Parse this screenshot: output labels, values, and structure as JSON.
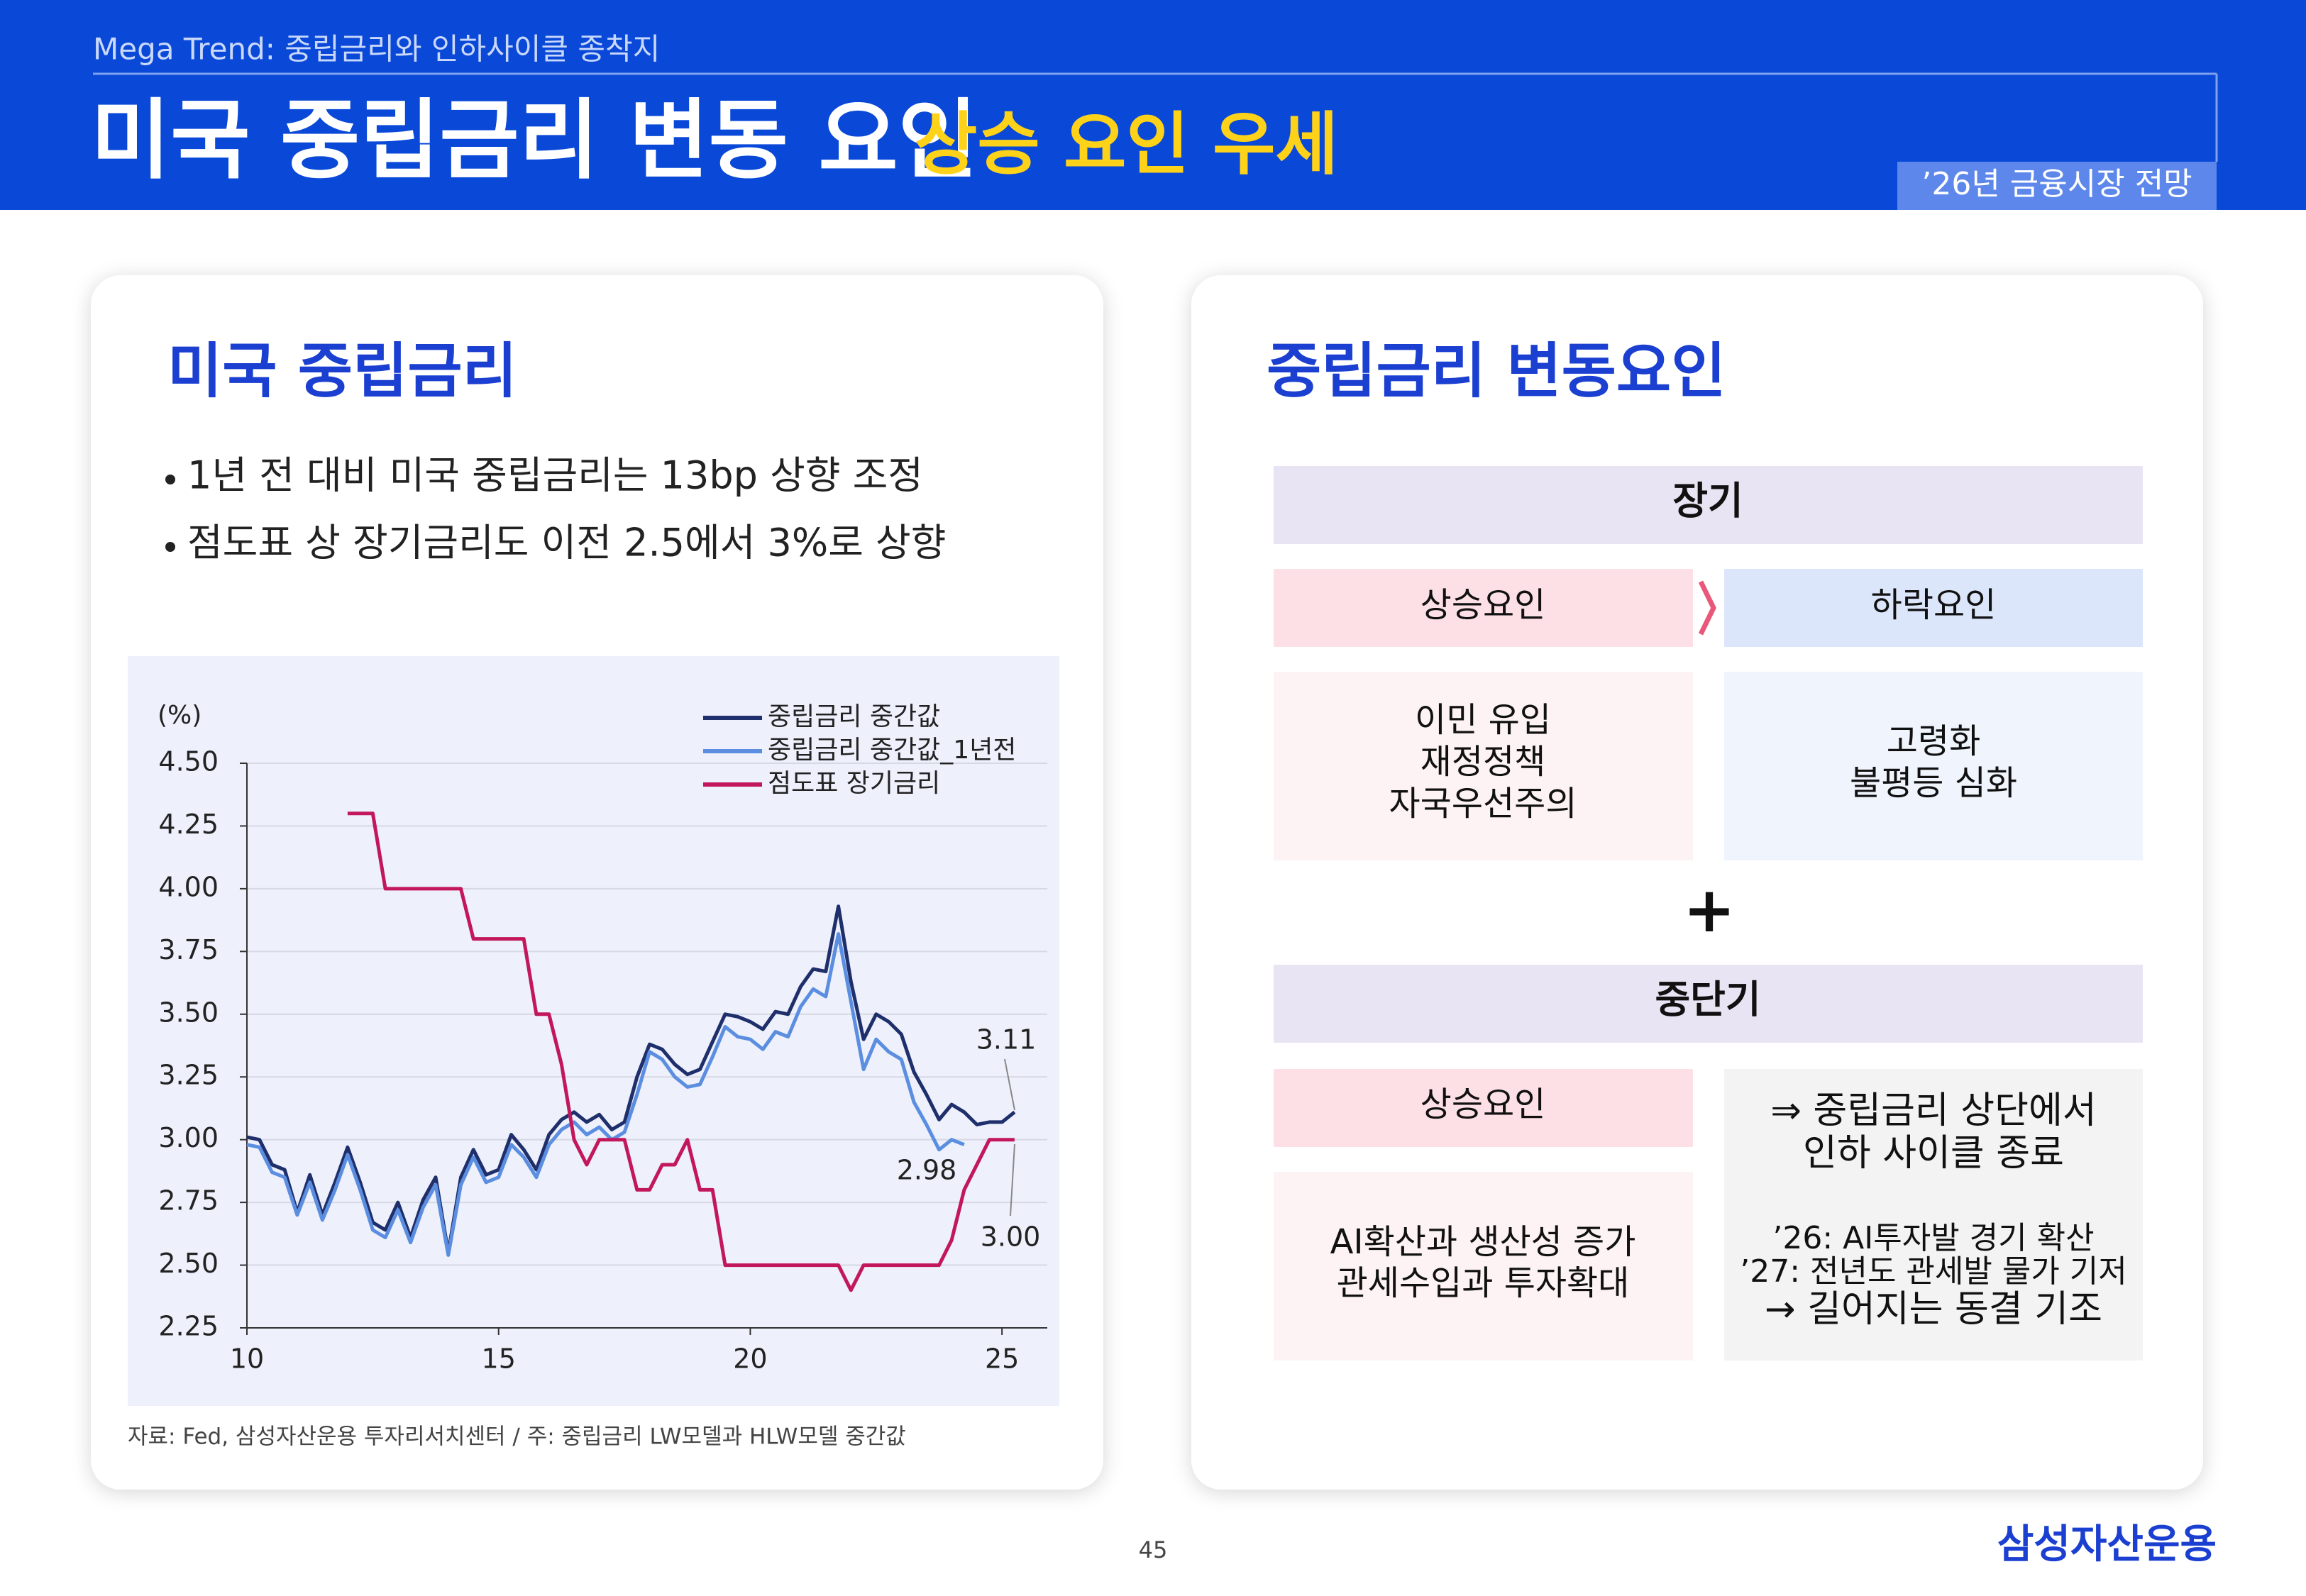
{
  "header": {
    "subtitle": "Mega Trend: 중립금리와 인하사이클 종착지",
    "title": "미국 중립금리 변동 요인",
    "highlight": "상승 요인 우세",
    "tag": "’26년 금융시장 전망"
  },
  "left_panel": {
    "heading": "미국 중립금리",
    "bullets": [
      "1년 전 대비 미국 중립금리는 13bp 상향 조정",
      "점도표 상 장기금리도 이전 2.5에서 3%로 상향"
    ],
    "source": "자료: Fed, 삼성자산운용 투자리서치센터 / 주: 중립금리  LW모델과 HLW모델 중간값"
  },
  "chart_data": {
    "type": "line",
    "y_label": "(%)",
    "grid": true,
    "legend": "upper right",
    "x": [
      10,
      10.25,
      10.5,
      10.75,
      11,
      11.25,
      11.5,
      11.75,
      12,
      12.25,
      12.5,
      12.75,
      13,
      13.25,
      13.5,
      13.75,
      14,
      14.25,
      14.5,
      14.75,
      15,
      15.25,
      15.5,
      15.75,
      16,
      16.25,
      16.5,
      16.75,
      17,
      17.25,
      17.5,
      17.75,
      18,
      18.25,
      18.5,
      18.75,
      19,
      19.25,
      19.5,
      19.75,
      20,
      20.25,
      20.5,
      20.75,
      21,
      21.25,
      21.5,
      21.75,
      22,
      22.25,
      22.5,
      22.75,
      23,
      23.25,
      23.5,
      23.75,
      24,
      24.25,
      24.5,
      24.75,
      25,
      25.25
    ],
    "series": [
      {
        "name": "중립금리 중간값",
        "color": "#1f2f6b",
        "values": [
          3.01,
          3.0,
          2.9,
          2.88,
          2.71,
          2.86,
          2.7,
          2.83,
          2.97,
          2.83,
          2.67,
          2.64,
          2.75,
          2.61,
          2.76,
          2.85,
          2.55,
          2.85,
          2.96,
          2.86,
          2.88,
          3.02,
          2.96,
          2.88,
          3.02,
          3.08,
          3.11,
          3.07,
          3.1,
          3.04,
          3.07,
          3.25,
          3.38,
          3.36,
          3.3,
          3.26,
          3.28,
          3.39,
          3.5,
          3.49,
          3.47,
          3.44,
          3.51,
          3.5,
          3.61,
          3.68,
          3.67,
          3.93,
          3.63,
          3.4,
          3.5,
          3.47,
          3.42,
          3.27,
          3.18,
          3.08,
          3.14,
          3.11,
          3.06,
          3.07,
          3.07,
          3.11
        ]
      },
      {
        "name": "중립금리 중간값_1년전",
        "color": "#5b8ee0",
        "values": [
          2.98,
          2.97,
          2.87,
          2.85,
          2.7,
          2.83,
          2.68,
          2.8,
          2.94,
          2.8,
          2.64,
          2.61,
          2.72,
          2.59,
          2.73,
          2.82,
          2.54,
          2.82,
          2.93,
          2.83,
          2.85,
          2.98,
          2.93,
          2.85,
          2.98,
          3.04,
          3.07,
          3.02,
          3.05,
          3.0,
          3.03,
          3.18,
          3.35,
          3.32,
          3.25,
          3.21,
          3.22,
          3.33,
          3.45,
          3.41,
          3.4,
          3.36,
          3.43,
          3.41,
          3.53,
          3.6,
          3.57,
          3.82,
          3.55,
          3.28,
          3.4,
          3.35,
          3.32,
          3.15,
          3.06,
          2.96,
          3.0,
          2.98,
          null,
          null,
          null,
          null
        ]
      },
      {
        "name": "점도표 장기금리",
        "color": "#c2185b",
        "values": [
          null,
          null,
          null,
          null,
          null,
          null,
          null,
          null,
          4.3,
          4.3,
          4.3,
          4.0,
          4.0,
          4.0,
          4.0,
          4.0,
          4.0,
          4.0,
          3.8,
          3.8,
          3.8,
          3.8,
          3.8,
          3.5,
          3.5,
          3.3,
          3.0,
          2.9,
          3.0,
          3.0,
          3.0,
          2.8,
          2.8,
          2.9,
          2.9,
          3.0,
          2.8,
          2.8,
          2.5,
          2.5,
          2.5,
          2.5,
          2.5,
          2.5,
          2.5,
          2.5,
          2.5,
          2.5,
          2.4,
          2.5,
          2.5,
          2.5,
          2.5,
          2.5,
          2.5,
          2.5,
          2.6,
          2.8,
          2.9,
          3.0,
          3.0,
          3.0
        ]
      }
    ],
    "xlim": [
      10,
      25.9
    ],
    "ylim": [
      2.25,
      4.5
    ],
    "xticks": [
      10,
      15,
      20,
      25
    ],
    "yticks": [
      {
        "value": 2.25,
        "label": "2.25"
      },
      {
        "value": 2.5,
        "label": "2.50"
      },
      {
        "value": 2.75,
        "label": "2.75"
      },
      {
        "value": 3,
        "label": "3.00"
      },
      {
        "value": 3.25,
        "label": "3.25"
      },
      {
        "value": 3.5,
        "label": "3.50"
      },
      {
        "value": 3.75,
        "label": "3.75"
      },
      {
        "value": 4,
        "label": "4.00"
      },
      {
        "value": 4.25,
        "label": "4.25"
      },
      {
        "value": 4.5,
        "label": "4.50"
      }
    ],
    "annotations": [
      "3.11",
      "2.98",
      "3.00"
    ]
  },
  "right_panel": {
    "heading": "중립금리 변동요인",
    "long_term": {
      "label": "장기",
      "up_label": "상승요인",
      "down_label": "하락요인",
      "up_factors": [
        "이민 유입",
        "재정정책",
        "자국우선주의"
      ],
      "down_factors": [
        "고령화",
        "불평등 심화"
      ]
    },
    "plus": "+",
    "mid_term": {
      "label": "중단기",
      "up_label": "상승요인",
      "up_factors": [
        "AI확산과 생산성 증가",
        "관세수입과 투자확대"
      ],
      "conclusion": [
        "⇒ 중립금리 상단에서",
        "인하 사이클 종료"
      ],
      "notes": [
        "’26: AI투자발 경기 확산",
        "’27: 전년도 관세발 물가 기저"
      ],
      "outlook": "→ 길어지는 동결 기조"
    }
  },
  "footer": {
    "page": "45",
    "logo": "삼성자산운용"
  }
}
